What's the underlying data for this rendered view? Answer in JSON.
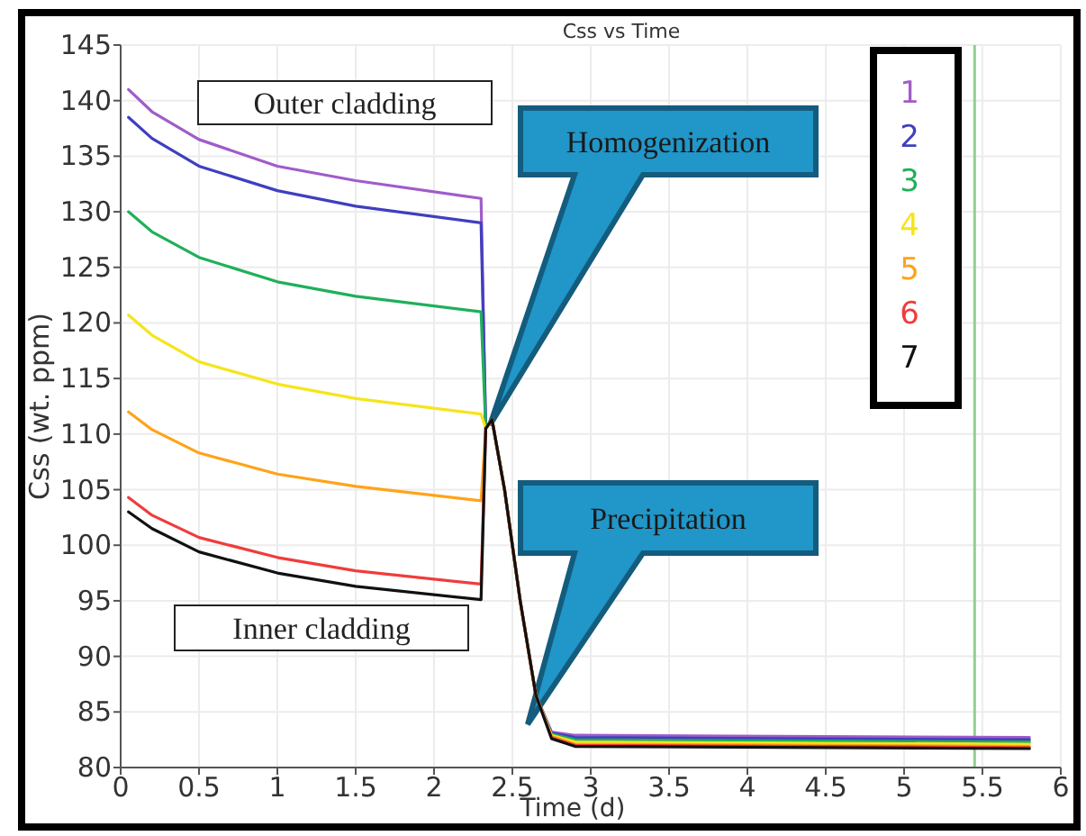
{
  "chart_data": {
    "type": "line",
    "title": "Css vs Time",
    "xlabel": "Time (d)",
    "ylabel": "Css (wt. ppm)",
    "x": [
      0.05,
      0.2,
      0.5,
      1,
      1.5,
      2.3,
      2.33,
      2.37,
      2.45,
      2.55,
      2.65,
      2.75,
      2.9,
      5.8
    ],
    "series": [
      {
        "name": "1",
        "color": "#a05cc8",
        "values": [
          141,
          139,
          136.5,
          134.1,
          132.8,
          131.2,
          110.5,
          111.3,
          105,
          95,
          86.5,
          83.2,
          82.9,
          82.7
        ]
      },
      {
        "name": "2",
        "color": "#3f3fbf",
        "values": [
          138.5,
          136.6,
          134.1,
          131.9,
          130.5,
          129,
          110.5,
          111.3,
          105,
          95,
          86.5,
          83.1,
          82.7,
          82.5
        ]
      },
      {
        "name": "3",
        "color": "#1fb05a",
        "values": [
          130,
          128.2,
          125.9,
          123.7,
          122.4,
          121,
          110.5,
          111.3,
          105,
          95,
          86.5,
          83,
          82.5,
          82.3
        ]
      },
      {
        "name": "4",
        "color": "#f5e51b",
        "values": [
          120.7,
          118.9,
          116.5,
          114.5,
          113.2,
          111.8,
          110.5,
          111.3,
          105,
          95,
          86.5,
          82.9,
          82.3,
          82.1
        ]
      },
      {
        "name": "5",
        "color": "#ffa31a",
        "values": [
          112,
          110.4,
          108.3,
          106.4,
          105.3,
          104,
          110.5,
          111.3,
          105,
          95,
          86.5,
          82.8,
          82.1,
          81.9
        ]
      },
      {
        "name": "6",
        "color": "#f03c3c",
        "values": [
          104.3,
          102.7,
          100.7,
          98.9,
          97.7,
          96.5,
          110.5,
          111.3,
          105,
          95,
          86.5,
          82.7,
          82,
          81.8
        ]
      },
      {
        "name": "7",
        "color": "#111111",
        "values": [
          103,
          101.5,
          99.4,
          97.5,
          96.3,
          95.1,
          110.5,
          111.3,
          105,
          95,
          86.5,
          82.6,
          81.9,
          81.7
        ]
      }
    ],
    "xlim": [
      0,
      6
    ],
    "xticks": [
      0,
      0.5,
      1,
      1.5,
      2,
      2.5,
      3,
      3.5,
      4,
      4.5,
      5,
      5.5,
      6
    ],
    "ylim": [
      80,
      145
    ],
    "yticks": [
      80,
      85,
      90,
      95,
      100,
      105,
      110,
      115,
      120,
      125,
      130,
      135,
      140,
      145
    ],
    "grid": true,
    "legend": "top right",
    "ref_lines": [
      {
        "axis": "x",
        "value": 5.45,
        "color": "#90d090"
      }
    ],
    "annotations": [
      "Outer cladding",
      "Inner cladding",
      "Homogenization",
      "Precipitation"
    ]
  }
}
